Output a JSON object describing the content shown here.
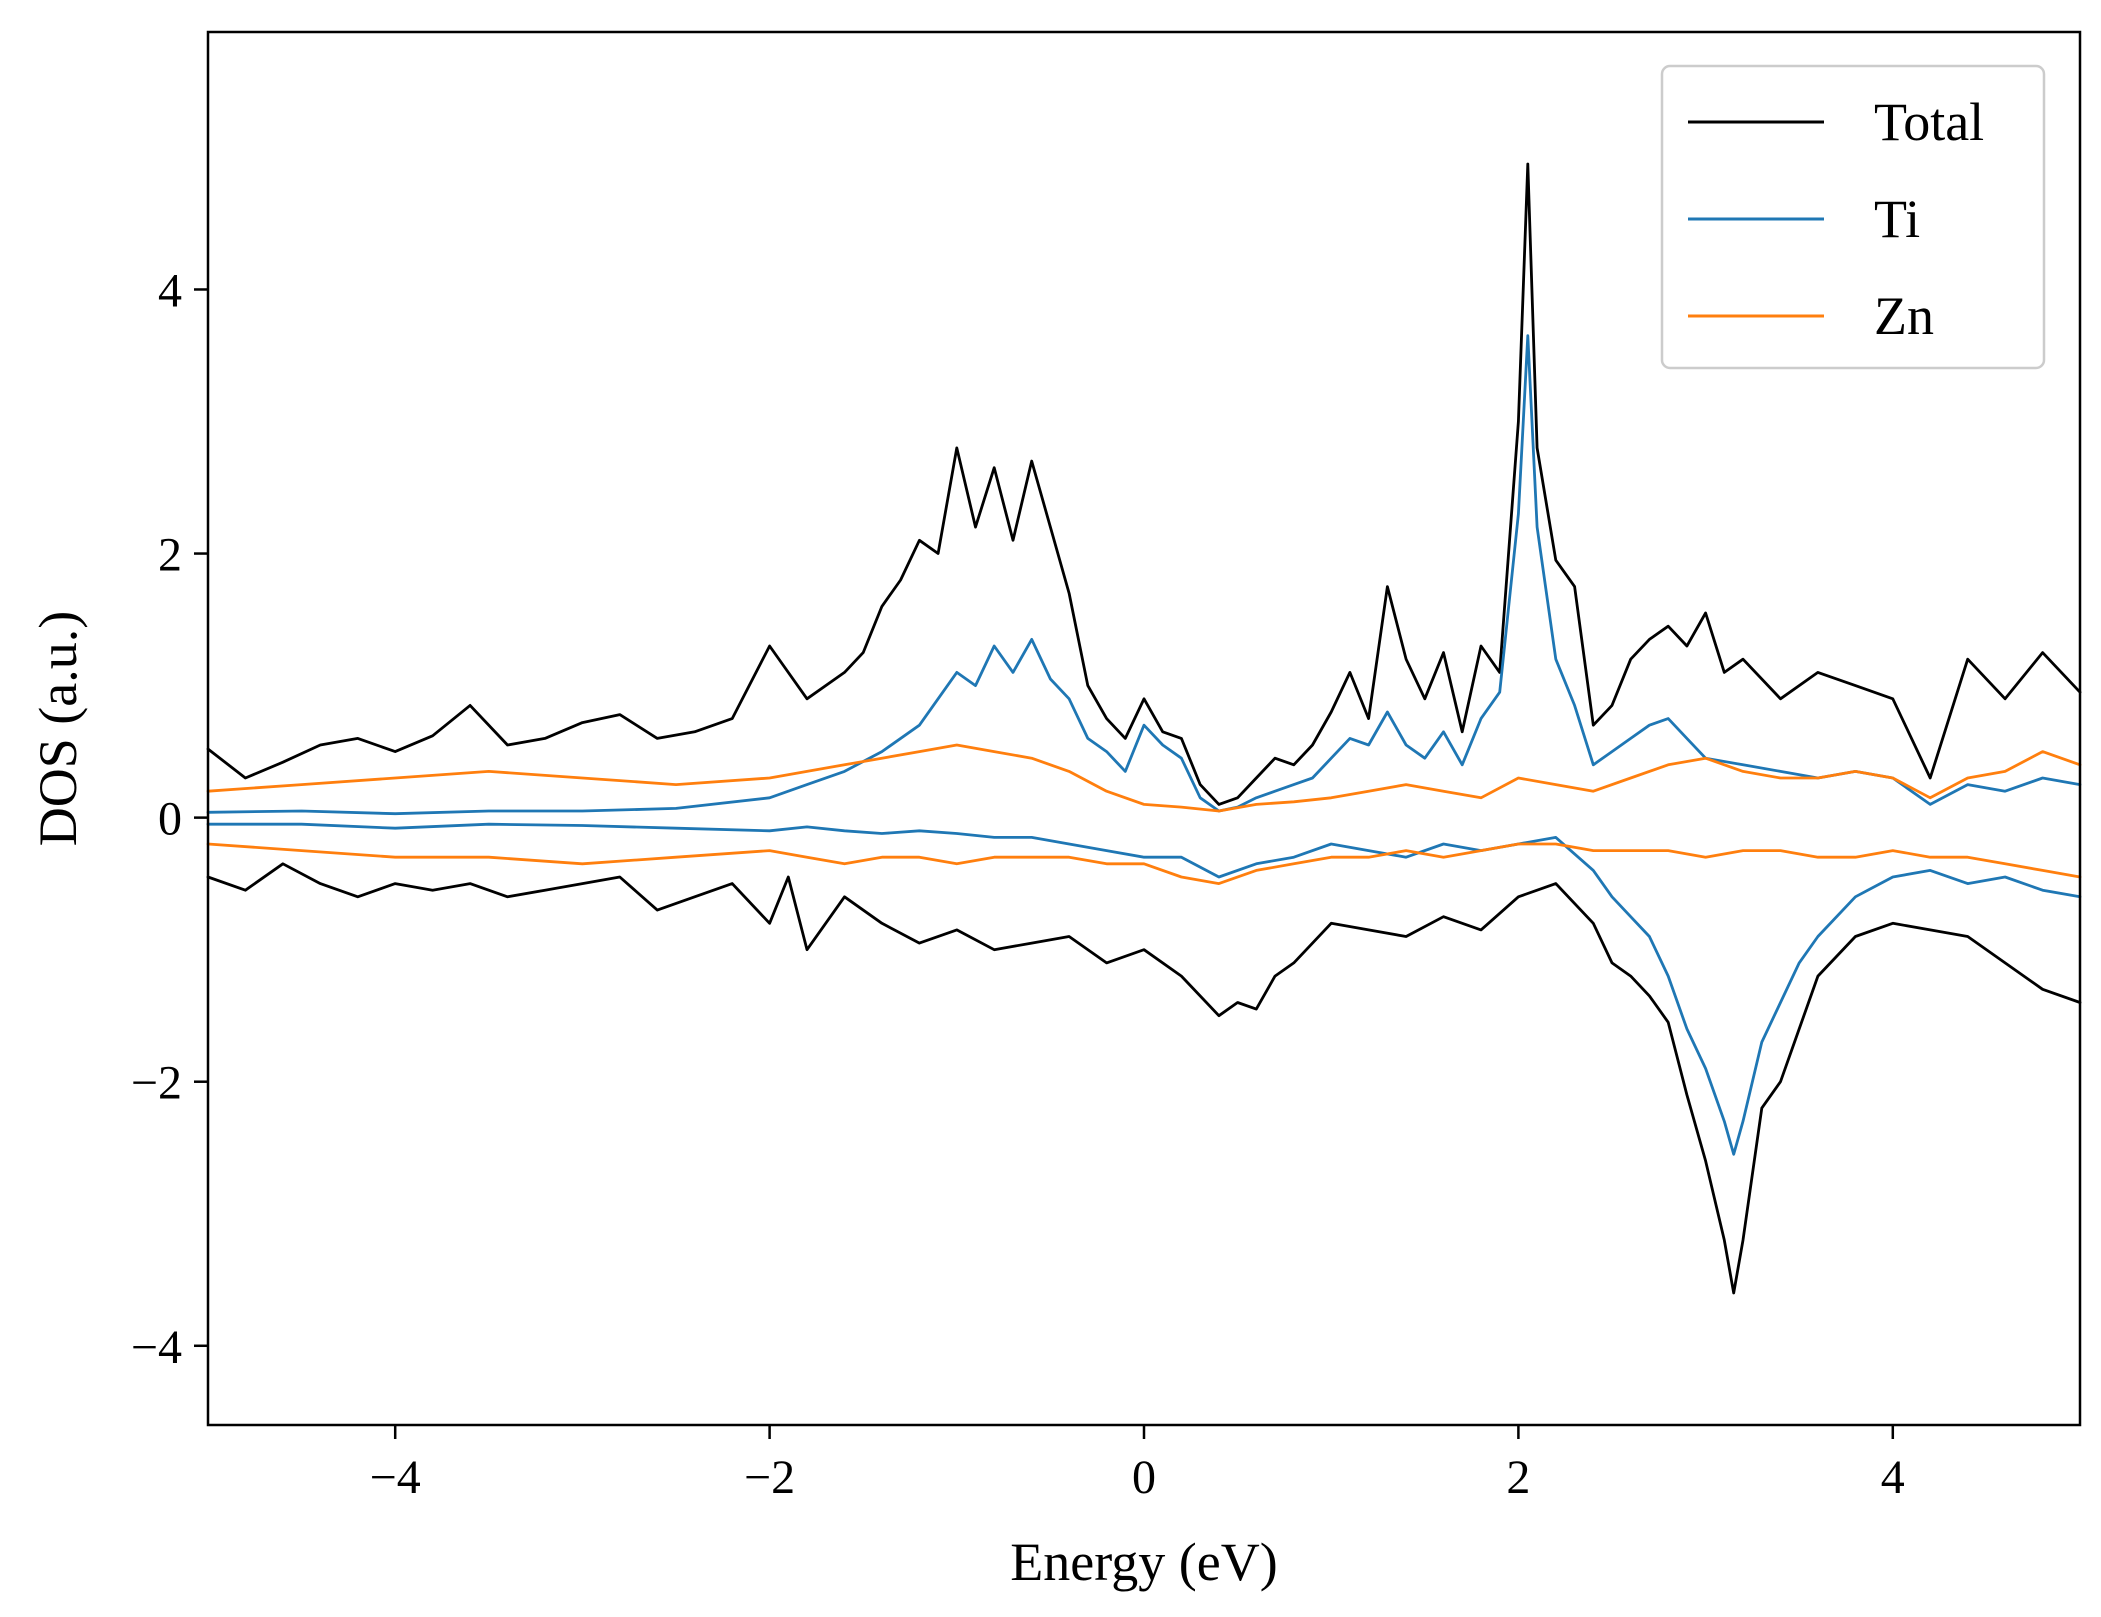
{
  "chart_data": {
    "type": "line",
    "title": "",
    "xlabel": "Energy (eV)",
    "ylabel": "DOS (a.u.)",
    "xlim": [
      -5,
      5
    ],
    "ylim": [
      -4.6,
      5.95
    ],
    "xticks": [
      -4,
      -2,
      0,
      2,
      4
    ],
    "yticks": [
      -4,
      -2,
      0,
      2,
      4
    ],
    "xtick_labels": [
      "−4",
      "−2",
      "0",
      "2",
      "4"
    ],
    "ytick_labels": [
      "−4",
      "−2",
      "0",
      "2",
      "4"
    ],
    "grid": false,
    "legend_position": "top-right",
    "series": [
      {
        "name": "Total",
        "color": "#000000",
        "spin_up": {
          "x": [
            -5,
            -4.8,
            -4.6,
            -4.4,
            -4.2,
            -4,
            -3.8,
            -3.6,
            -3.4,
            -3.2,
            -3,
            -2.8,
            -2.6,
            -2.4,
            -2.2,
            -2,
            -1.8,
            -1.6,
            -1.5,
            -1.4,
            -1.3,
            -1.2,
            -1.1,
            -1,
            -0.9,
            -0.8,
            -0.7,
            -0.6,
            -0.5,
            -0.4,
            -0.3,
            -0.2,
            -0.1,
            0,
            0.1,
            0.2,
            0.3,
            0.4,
            0.5,
            0.6,
            0.7,
            0.8,
            0.9,
            1,
            1.1,
            1.2,
            1.3,
            1.4,
            1.5,
            1.6,
            1.7,
            1.8,
            1.9,
            2,
            2.05,
            2.1,
            2.2,
            2.3,
            2.4,
            2.5,
            2.6,
            2.7,
            2.8,
            2.9,
            3,
            3.1,
            3.2,
            3.4,
            3.6,
            3.8,
            4,
            4.2,
            4.4,
            4.6,
            4.8,
            5
          ],
          "y": [
            0.52,
            0.3,
            0.42,
            0.55,
            0.6,
            0.5,
            0.62,
            0.85,
            0.55,
            0.6,
            0.72,
            0.78,
            0.6,
            0.65,
            0.75,
            1.3,
            0.9,
            1.1,
            1.25,
            1.6,
            1.8,
            2.1,
            2.0,
            2.8,
            2.2,
            2.65,
            2.1,
            2.7,
            2.2,
            1.7,
            1.0,
            0.75,
            0.6,
            0.9,
            0.65,
            0.6,
            0.25,
            0.1,
            0.15,
            0.3,
            0.45,
            0.4,
            0.55,
            0.8,
            1.1,
            0.75,
            1.75,
            1.2,
            0.9,
            1.25,
            0.65,
            1.3,
            1.1,
            3.0,
            4.95,
            2.8,
            1.95,
            1.75,
            0.7,
            0.85,
            1.2,
            1.35,
            1.45,
            1.3,
            1.55,
            1.1,
            1.2,
            0.9,
            1.1,
            1.0,
            0.9,
            0.3,
            1.2,
            0.9,
            1.25,
            0.95
          ]
        },
        "spin_down": {
          "x": [
            -5,
            -4.8,
            -4.6,
            -4.4,
            -4.2,
            -4,
            -3.8,
            -3.6,
            -3.4,
            -3.2,
            -3,
            -2.8,
            -2.6,
            -2.4,
            -2.2,
            -2,
            -1.9,
            -1.8,
            -1.6,
            -1.4,
            -1.2,
            -1,
            -0.8,
            -0.6,
            -0.4,
            -0.2,
            0,
            0.2,
            0.4,
            0.5,
            0.6,
            0.7,
            0.8,
            1,
            1.2,
            1.4,
            1.6,
            1.8,
            2,
            2.2,
            2.4,
            2.5,
            2.6,
            2.7,
            2.8,
            2.9,
            3,
            3.1,
            3.15,
            3.2,
            3.3,
            3.4,
            3.5,
            3.6,
            3.8,
            4,
            4.2,
            4.4,
            4.6,
            4.8,
            5
          ],
          "y": [
            -0.45,
            -0.55,
            -0.35,
            -0.5,
            -0.6,
            -0.5,
            -0.55,
            -0.5,
            -0.6,
            -0.55,
            -0.5,
            -0.45,
            -0.7,
            -0.6,
            -0.5,
            -0.8,
            -0.45,
            -1.0,
            -0.6,
            -0.8,
            -0.95,
            -0.85,
            -1.0,
            -0.95,
            -0.9,
            -1.1,
            -1.0,
            -1.2,
            -1.5,
            -1.4,
            -1.45,
            -1.2,
            -1.1,
            -0.8,
            -0.85,
            -0.9,
            -0.75,
            -0.85,
            -0.6,
            -0.5,
            -0.8,
            -1.1,
            -1.2,
            -1.35,
            -1.55,
            -2.1,
            -2.6,
            -3.2,
            -3.6,
            -3.2,
            -2.2,
            -2.0,
            -1.6,
            -1.2,
            -0.9,
            -0.8,
            -0.85,
            -0.9,
            -1.1,
            -1.3,
            -1.4
          ]
        }
      },
      {
        "name": "Ti",
        "color": "#1f77b4",
        "spin_up": {
          "x": [
            -5,
            -4.5,
            -4,
            -3.5,
            -3,
            -2.5,
            -2,
            -1.8,
            -1.6,
            -1.4,
            -1.2,
            -1,
            -0.9,
            -0.8,
            -0.7,
            -0.6,
            -0.5,
            -0.4,
            -0.3,
            -0.2,
            -0.1,
            0,
            0.1,
            0.2,
            0.3,
            0.4,
            0.5,
            0.6,
            0.7,
            0.8,
            0.9,
            1,
            1.1,
            1.2,
            1.3,
            1.4,
            1.5,
            1.6,
            1.7,
            1.8,
            1.9,
            2,
            2.05,
            2.1,
            2.2,
            2.3,
            2.4,
            2.5,
            2.6,
            2.7,
            2.8,
            2.9,
            3,
            3.2,
            3.4,
            3.6,
            3.8,
            4,
            4.2,
            4.4,
            4.6,
            4.8,
            5
          ],
          "y": [
            0.04,
            0.05,
            0.03,
            0.05,
            0.05,
            0.07,
            0.15,
            0.25,
            0.35,
            0.5,
            0.7,
            1.1,
            1.0,
            1.3,
            1.1,
            1.35,
            1.05,
            0.9,
            0.6,
            0.5,
            0.35,
            0.7,
            0.55,
            0.45,
            0.15,
            0.05,
            0.08,
            0.15,
            0.2,
            0.25,
            0.3,
            0.45,
            0.6,
            0.55,
            0.8,
            0.55,
            0.45,
            0.65,
            0.4,
            0.75,
            0.95,
            2.3,
            3.65,
            2.2,
            1.2,
            0.85,
            0.4,
            0.5,
            0.6,
            0.7,
            0.75,
            0.6,
            0.45,
            0.4,
            0.35,
            0.3,
            0.35,
            0.3,
            0.1,
            0.25,
            0.2,
            0.3,
            0.25
          ]
        },
        "spin_down": {
          "x": [
            -5,
            -4.5,
            -4,
            -3.5,
            -3,
            -2.5,
            -2,
            -1.8,
            -1.6,
            -1.4,
            -1.2,
            -1,
            -0.8,
            -0.6,
            -0.4,
            -0.2,
            0,
            0.2,
            0.4,
            0.6,
            0.8,
            1,
            1.2,
            1.4,
            1.6,
            1.8,
            2,
            2.2,
            2.4,
            2.5,
            2.6,
            2.7,
            2.8,
            2.9,
            3,
            3.1,
            3.15,
            3.2,
            3.3,
            3.4,
            3.5,
            3.6,
            3.8,
            4,
            4.2,
            4.4,
            4.6,
            4.8,
            5
          ],
          "y": [
            -0.05,
            -0.05,
            -0.08,
            -0.05,
            -0.06,
            -0.08,
            -0.1,
            -0.07,
            -0.1,
            -0.12,
            -0.1,
            -0.12,
            -0.15,
            -0.15,
            -0.2,
            -0.25,
            -0.3,
            -0.3,
            -0.45,
            -0.35,
            -0.3,
            -0.2,
            -0.25,
            -0.3,
            -0.2,
            -0.25,
            -0.2,
            -0.15,
            -0.4,
            -0.6,
            -0.75,
            -0.9,
            -1.2,
            -1.6,
            -1.9,
            -2.3,
            -2.55,
            -2.3,
            -1.7,
            -1.4,
            -1.1,
            -0.9,
            -0.6,
            -0.45,
            -0.4,
            -0.5,
            -0.45,
            -0.55,
            -0.6
          ]
        }
      },
      {
        "name": "Zn",
        "color": "#ff7f0e",
        "spin_up": {
          "x": [
            -5,
            -4.5,
            -4,
            -3.5,
            -3,
            -2.5,
            -2,
            -1.8,
            -1.6,
            -1.4,
            -1.2,
            -1,
            -0.8,
            -0.6,
            -0.4,
            -0.2,
            0,
            0.2,
            0.4,
            0.6,
            0.8,
            1,
            1.2,
            1.4,
            1.6,
            1.8,
            2,
            2.2,
            2.4,
            2.6,
            2.8,
            3,
            3.2,
            3.4,
            3.6,
            3.8,
            4,
            4.2,
            4.4,
            4.6,
            4.8,
            5
          ],
          "y": [
            0.2,
            0.25,
            0.3,
            0.35,
            0.3,
            0.25,
            0.3,
            0.35,
            0.4,
            0.45,
            0.5,
            0.55,
            0.5,
            0.45,
            0.35,
            0.2,
            0.1,
            0.08,
            0.05,
            0.1,
            0.12,
            0.15,
            0.2,
            0.25,
            0.2,
            0.15,
            0.3,
            0.25,
            0.2,
            0.3,
            0.4,
            0.45,
            0.35,
            0.3,
            0.3,
            0.35,
            0.3,
            0.15,
            0.3,
            0.35,
            0.5,
            0.4
          ]
        },
        "spin_down": {
          "x": [
            -5,
            -4.5,
            -4,
            -3.5,
            -3,
            -2.5,
            -2,
            -1.8,
            -1.6,
            -1.4,
            -1.2,
            -1,
            -0.8,
            -0.6,
            -0.4,
            -0.2,
            0,
            0.2,
            0.4,
            0.6,
            0.8,
            1,
            1.2,
            1.4,
            1.6,
            1.8,
            2,
            2.2,
            2.4,
            2.6,
            2.8,
            3,
            3.2,
            3.4,
            3.6,
            3.8,
            4,
            4.2,
            4.4,
            4.6,
            4.8,
            5
          ],
          "y": [
            -0.2,
            -0.25,
            -0.3,
            -0.3,
            -0.35,
            -0.3,
            -0.25,
            -0.3,
            -0.35,
            -0.3,
            -0.3,
            -0.35,
            -0.3,
            -0.3,
            -0.3,
            -0.35,
            -0.35,
            -0.45,
            -0.5,
            -0.4,
            -0.35,
            -0.3,
            -0.3,
            -0.25,
            -0.3,
            -0.25,
            -0.2,
            -0.2,
            -0.25,
            -0.25,
            -0.25,
            -0.3,
            -0.25,
            -0.25,
            -0.3,
            -0.3,
            -0.25,
            -0.3,
            -0.3,
            -0.35,
            -0.4,
            -0.45
          ]
        }
      }
    ]
  }
}
